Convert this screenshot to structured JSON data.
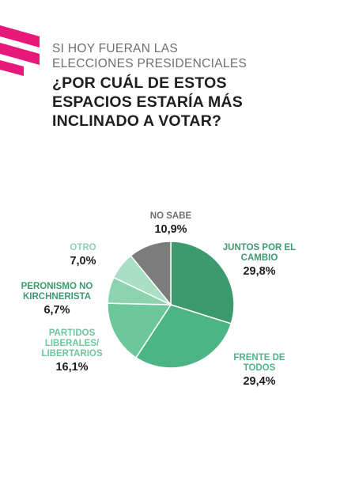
{
  "header": {
    "kicker_lines": [
      "SI HOY FUERAN LAS",
      "ELECCIONES PRESIDENCIALES"
    ],
    "title_lines": [
      "¿POR CUÁL DE ESTOS",
      "ESPACIOS ESTARÍA MÁS",
      "INCLINADO A VOTAR?"
    ],
    "brand_color": "#e8177a"
  },
  "chart_data": {
    "type": "pie",
    "title": "¿POR CUÁL DE ESTOS ESPACIOS ESTARÍA MÁS INCLINADO A VOTAR?",
    "slices": [
      {
        "label_lines": [
          "JUNTOS POR EL",
          "CAMBIO"
        ],
        "value": 29.8,
        "value_text": "29,8%",
        "color": "#3d9a6f",
        "label_color": "#3d9a6f"
      },
      {
        "label_lines": [
          "FRENTE DE",
          "TODOS"
        ],
        "value": 29.4,
        "value_text": "29,4%",
        "color": "#4db585",
        "label_color": "#4db585"
      },
      {
        "label_lines": [
          "PARTIDOS",
          "LIBERALES/",
          "LIBERTARIOS"
        ],
        "value": 16.1,
        "value_text": "16,1%",
        "color": "#6cc79a",
        "label_color": "#6cc79a"
      },
      {
        "label_lines": [
          "PERONISMO NO",
          "KIRCHNERISTA"
        ],
        "value": 6.7,
        "value_text": "6,7%",
        "color": "#8ed3b0",
        "label_color": "#3d9a6f"
      },
      {
        "label_lines": [
          "OTRO"
        ],
        "value": 7.0,
        "value_text": "7,0%",
        "color": "#a9dfc4",
        "label_color": "#8ed3b0"
      },
      {
        "label_lines": [
          "NO SABE"
        ],
        "value": 10.9,
        "value_text": "10,9%",
        "color": "#7c7c7c",
        "label_color": "#6f6f6f"
      }
    ]
  }
}
